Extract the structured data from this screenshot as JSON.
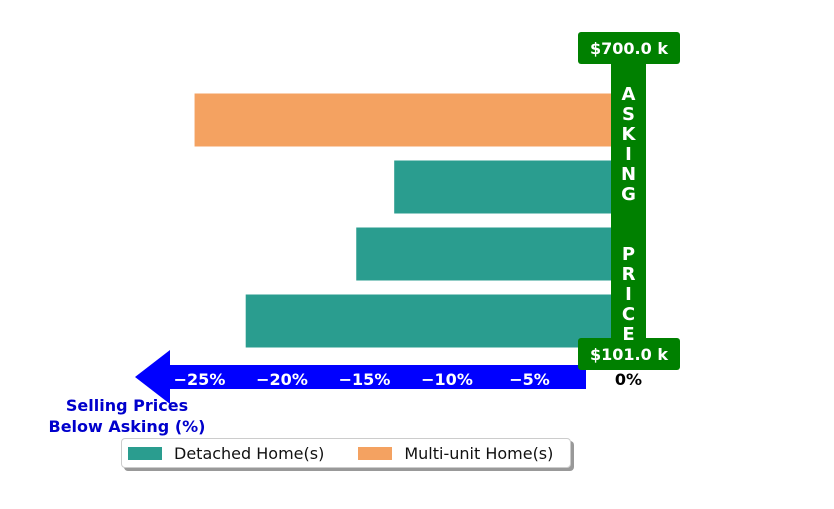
{
  "chart_data": {
    "type": "bar",
    "orientation": "horizontal",
    "series": [
      {
        "name": "Detached Home(s)",
        "color": "#2a9d8f",
        "values": [
          -22.2,
          -15.5,
          -13.2
        ]
      },
      {
        "name": "Multi-unit Home(s)",
        "color": "#f4a261",
        "values": [
          -25.3
        ]
      }
    ],
    "bars_bottom_to_top": [
      {
        "series": "Detached Home(s)",
        "value": -22.2
      },
      {
        "series": "Detached Home(s)",
        "value": -15.5
      },
      {
        "series": "Detached Home(s)",
        "value": -13.2
      },
      {
        "series": "Multi-unit Home(s)",
        "value": -25.3
      }
    ],
    "xlim": [
      -28.5,
      2
    ],
    "xticks": [
      {
        "value": -25,
        "label": "−25%"
      },
      {
        "value": -20,
        "label": "−20%"
      },
      {
        "value": -15,
        "label": "−15%"
      },
      {
        "value": -10,
        "label": "−10%"
      },
      {
        "value": -5,
        "label": "−5%"
      },
      {
        "value": 0,
        "label": "0%"
      }
    ],
    "xlabel_lines": [
      "Selling Prices",
      "Below Asking (%)"
    ],
    "asking_bar_text": "ASKING  PRICE",
    "top_price_label": "$700.0 k",
    "bottom_price_label": "$101.0 k",
    "legend_position": "bottom-left",
    "colors": {
      "axis_arrow": "#0000ff",
      "xlabel": "#0000cc",
      "asking_bar": "#008000",
      "tick_text_on_arrow": "#ffffff",
      "zero_tick": "#000000"
    }
  },
  "legend": [
    {
      "label": "Detached Home(s)",
      "color": "#2a9d8f"
    },
    {
      "label": "Multi-unit Home(s)",
      "color": "#f4a261"
    }
  ]
}
